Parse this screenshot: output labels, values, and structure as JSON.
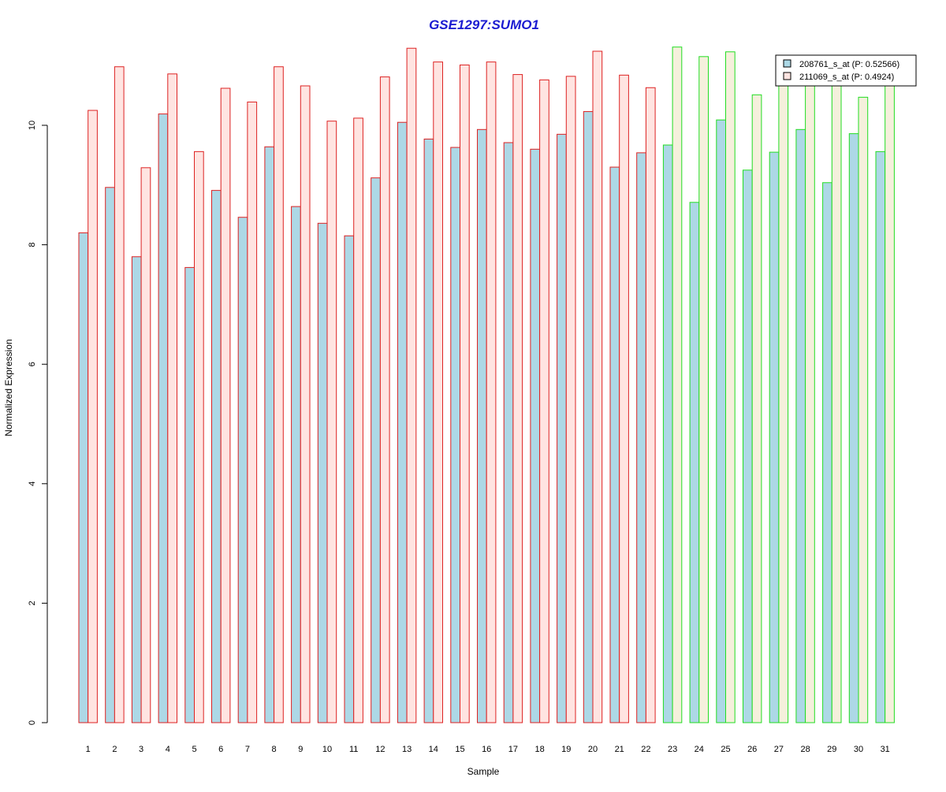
{
  "chart_data": {
    "type": "bar",
    "title": "GSE1297:SUMO1",
    "xlabel": "Sample",
    "ylabel": "Normalized Expression",
    "ylim": [
      0,
      11.4
    ],
    "yticks": [
      0,
      2,
      4,
      6,
      8,
      10
    ],
    "grid": false,
    "legend_position": "top-right",
    "categories": [
      "1",
      "2",
      "3",
      "4",
      "5",
      "6",
      "7",
      "8",
      "9",
      "10",
      "11",
      "12",
      "13",
      "14",
      "15",
      "16",
      "17",
      "18",
      "19",
      "20",
      "21",
      "22",
      "23",
      "24",
      "25",
      "26",
      "27",
      "28",
      "29",
      "30",
      "31"
    ],
    "group_of_sample": [
      "A",
      "A",
      "A",
      "A",
      "A",
      "A",
      "A",
      "A",
      "A",
      "A",
      "A",
      "A",
      "A",
      "A",
      "A",
      "A",
      "A",
      "A",
      "A",
      "A",
      "A",
      "A",
      "B",
      "B",
      "B",
      "B",
      "B",
      "B",
      "B",
      "B",
      "B"
    ],
    "group_colors": {
      "A": "#dd2222",
      "B": "#22dd22"
    },
    "title_color": "#1b1bd1",
    "series": [
      {
        "name": "208761_s_at (P: 0.52566)",
        "fill_color": "#add8e6",
        "values": [
          8.2,
          8.96,
          7.8,
          10.19,
          7.62,
          8.91,
          8.46,
          9.64,
          8.64,
          8.36,
          8.15,
          9.12,
          10.05,
          9.77,
          9.63,
          9.93,
          9.71,
          9.6,
          9.85,
          10.23,
          9.3,
          9.54,
          9.67,
          8.71,
          10.09,
          9.25,
          9.55,
          9.93,
          9.04,
          9.86,
          9.56
        ]
      },
      {
        "name": "211069_s_at (P: 0.4924)",
        "fill_color": "#ffe4e1",
        "fill_color_group_B": "#f5f0dc",
        "values": [
          10.25,
          10.98,
          9.29,
          10.86,
          9.56,
          10.62,
          10.39,
          10.98,
          10.66,
          10.07,
          10.12,
          10.81,
          11.29,
          11.06,
          11.01,
          11.06,
          10.85,
          10.76,
          10.82,
          11.24,
          10.84,
          10.63,
          11.31,
          11.15,
          11.23,
          10.51,
          10.95,
          10.95,
          10.95,
          10.47,
          10.95
        ]
      }
    ]
  }
}
